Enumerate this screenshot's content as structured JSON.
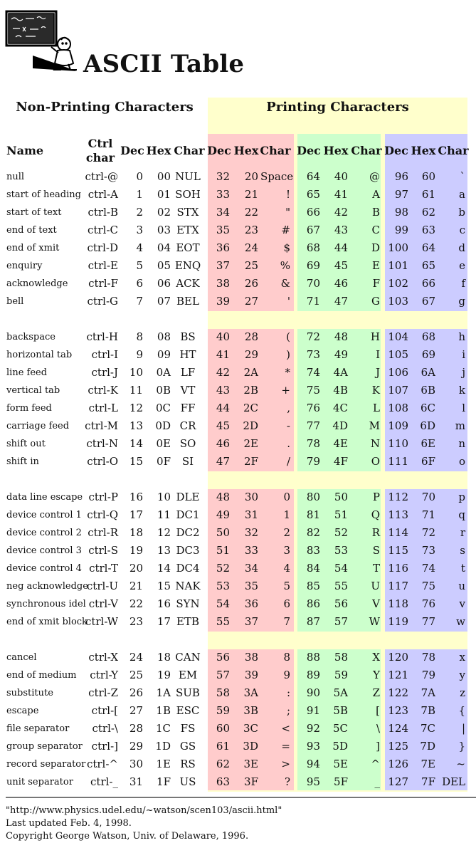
{
  "page": {
    "title": "ASCII Table",
    "logo_icon": "chalkboard-teacher-icon"
  },
  "sections": {
    "non_printing": "Non-Printing Characters",
    "printing": "Printing Characters"
  },
  "headers": {
    "name": "Name",
    "ctrl": "Ctrl char",
    "dec": "Dec",
    "hex": "Hex",
    "char": "Char"
  },
  "colors": {
    "section_bg": "#ffffcc",
    "group1_bg": "#ffcccc",
    "group2_bg": "#ccffcc",
    "group3_bg": "#ccccff"
  },
  "rows": [
    {
      "name": "null",
      "ctrl": "ctrl-@",
      "dec": "0",
      "hex": "00",
      "char": "NUL",
      "p": [
        [
          "32",
          "20",
          "Space"
        ],
        [
          "64",
          "40",
          "@"
        ],
        [
          "96",
          "60",
          "`"
        ]
      ]
    },
    {
      "name": "start of heading",
      "ctrl": "ctrl-A",
      "dec": "1",
      "hex": "01",
      "char": "SOH",
      "p": [
        [
          "33",
          "21",
          "!"
        ],
        [
          "65",
          "41",
          "A"
        ],
        [
          "97",
          "61",
          "a"
        ]
      ]
    },
    {
      "name": "start of text",
      "ctrl": "ctrl-B",
      "dec": "2",
      "hex": "02",
      "char": "STX",
      "p": [
        [
          "34",
          "22",
          "\""
        ],
        [
          "66",
          "42",
          "B"
        ],
        [
          "98",
          "62",
          "b"
        ]
      ]
    },
    {
      "name": "end of text",
      "ctrl": "ctrl-C",
      "dec": "3",
      "hex": "03",
      "char": "ETX",
      "p": [
        [
          "35",
          "23",
          "#"
        ],
        [
          "67",
          "43",
          "C"
        ],
        [
          "99",
          "63",
          "c"
        ]
      ]
    },
    {
      "name": "end of xmit",
      "ctrl": "ctrl-D",
      "dec": "4",
      "hex": "04",
      "char": "EOT",
      "p": [
        [
          "36",
          "24",
          "$"
        ],
        [
          "68",
          "44",
          "D"
        ],
        [
          "100",
          "64",
          "d"
        ]
      ]
    },
    {
      "name": "enquiry",
      "ctrl": "ctrl-E",
      "dec": "5",
      "hex": "05",
      "char": "ENQ",
      "p": [
        [
          "37",
          "25",
          "%"
        ],
        [
          "69",
          "45",
          "E"
        ],
        [
          "101",
          "65",
          "e"
        ]
      ]
    },
    {
      "name": "acknowledge",
      "ctrl": "ctrl-F",
      "dec": "6",
      "hex": "06",
      "char": "ACK",
      "p": [
        [
          "38",
          "26",
          "&"
        ],
        [
          "70",
          "46",
          "F"
        ],
        [
          "102",
          "66",
          "f"
        ]
      ]
    },
    {
      "name": "bell",
      "ctrl": "ctrl-G",
      "dec": "7",
      "hex": "07",
      "char": "BEL",
      "p": [
        [
          "39",
          "27",
          "'"
        ],
        [
          "71",
          "47",
          "G"
        ],
        [
          "103",
          "67",
          "g"
        ]
      ]
    },
    {
      "name": "backspace",
      "ctrl": "ctrl-H",
      "dec": "8",
      "hex": "08",
      "char": "BS",
      "p": [
        [
          "40",
          "28",
          "("
        ],
        [
          "72",
          "48",
          "H"
        ],
        [
          "104",
          "68",
          "h"
        ]
      ]
    },
    {
      "name": "horizontal tab",
      "ctrl": "ctrl-I",
      "dec": "9",
      "hex": "09",
      "char": "HT",
      "p": [
        [
          "41",
          "29",
          ")"
        ],
        [
          "73",
          "49",
          "I"
        ],
        [
          "105",
          "69",
          "i"
        ]
      ]
    },
    {
      "name": "line feed",
      "ctrl": "ctrl-J",
      "dec": "10",
      "hex": "0A",
      "char": "LF",
      "p": [
        [
          "42",
          "2A",
          "*"
        ],
        [
          "74",
          "4A",
          "J"
        ],
        [
          "106",
          "6A",
          "j"
        ]
      ]
    },
    {
      "name": "vertical tab",
      "ctrl": "ctrl-K",
      "dec": "11",
      "hex": "0B",
      "char": "VT",
      "p": [
        [
          "43",
          "2B",
          "+"
        ],
        [
          "75",
          "4B",
          "K"
        ],
        [
          "107",
          "6B",
          "k"
        ]
      ]
    },
    {
      "name": "form feed",
      "ctrl": "ctrl-L",
      "dec": "12",
      "hex": "0C",
      "char": "FF",
      "p": [
        [
          "44",
          "2C",
          ","
        ],
        [
          "76",
          "4C",
          "L"
        ],
        [
          "108",
          "6C",
          "l"
        ]
      ]
    },
    {
      "name": "carriage feed",
      "ctrl": "ctrl-M",
      "dec": "13",
      "hex": "0D",
      "char": "CR",
      "p": [
        [
          "45",
          "2D",
          "-"
        ],
        [
          "77",
          "4D",
          "M"
        ],
        [
          "109",
          "6D",
          "m"
        ]
      ]
    },
    {
      "name": "shift out",
      "ctrl": "ctrl-N",
      "dec": "14",
      "hex": "0E",
      "char": "SO",
      "p": [
        [
          "46",
          "2E",
          "."
        ],
        [
          "78",
          "4E",
          "N"
        ],
        [
          "110",
          "6E",
          "n"
        ]
      ]
    },
    {
      "name": "shift in",
      "ctrl": "ctrl-O",
      "dec": "15",
      "hex": "0F",
      "char": "SI",
      "p": [
        [
          "47",
          "2F",
          "/"
        ],
        [
          "79",
          "4F",
          "O"
        ],
        [
          "111",
          "6F",
          "o"
        ]
      ]
    },
    {
      "name": "data line escape",
      "ctrl": "ctrl-P",
      "dec": "16",
      "hex": "10",
      "char": "DLE",
      "p": [
        [
          "48",
          "30",
          "0"
        ],
        [
          "80",
          "50",
          "P"
        ],
        [
          "112",
          "70",
          "p"
        ]
      ]
    },
    {
      "name": "device control 1",
      "ctrl": "ctrl-Q",
      "dec": "17",
      "hex": "11",
      "char": "DC1",
      "p": [
        [
          "49",
          "31",
          "1"
        ],
        [
          "81",
          "51",
          "Q"
        ],
        [
          "113",
          "71",
          "q"
        ]
      ]
    },
    {
      "name": "device control 2",
      "ctrl": "ctrl-R",
      "dec": "18",
      "hex": "12",
      "char": "DC2",
      "p": [
        [
          "50",
          "32",
          "2"
        ],
        [
          "82",
          "52",
          "R"
        ],
        [
          "114",
          "72",
          "r"
        ]
      ]
    },
    {
      "name": "device control 3",
      "ctrl": "ctrl-S",
      "dec": "19",
      "hex": "13",
      "char": "DC3",
      "p": [
        [
          "51",
          "33",
          "3"
        ],
        [
          "83",
          "53",
          "S"
        ],
        [
          "115",
          "73",
          "s"
        ]
      ]
    },
    {
      "name": "device control 4",
      "ctrl": "ctrl-T",
      "dec": "20",
      "hex": "14",
      "char": "DC4",
      "p": [
        [
          "52",
          "34",
          "4"
        ],
        [
          "84",
          "54",
          "T"
        ],
        [
          "116",
          "74",
          "t"
        ]
      ]
    },
    {
      "name": "neg acknowledge",
      "ctrl": "ctrl-U",
      "dec": "21",
      "hex": "15",
      "char": "NAK",
      "p": [
        [
          "53",
          "35",
          "5"
        ],
        [
          "85",
          "55",
          "U"
        ],
        [
          "117",
          "75",
          "u"
        ]
      ]
    },
    {
      "name": "synchronous idel",
      "ctrl": "ctrl-V",
      "dec": "22",
      "hex": "16",
      "char": "SYN",
      "p": [
        [
          "54",
          "36",
          "6"
        ],
        [
          "86",
          "56",
          "V"
        ],
        [
          "118",
          "76",
          "v"
        ]
      ]
    },
    {
      "name": "end of xmit block",
      "ctrl": "ctrl-W",
      "dec": "23",
      "hex": "17",
      "char": "ETB",
      "p": [
        [
          "55",
          "37",
          "7"
        ],
        [
          "87",
          "57",
          "W"
        ],
        [
          "119",
          "77",
          "w"
        ]
      ]
    },
    {
      "name": "cancel",
      "ctrl": "ctrl-X",
      "dec": "24",
      "hex": "18",
      "char": "CAN",
      "p": [
        [
          "56",
          "38",
          "8"
        ],
        [
          "88",
          "58",
          "X"
        ],
        [
          "120",
          "78",
          "x"
        ]
      ]
    },
    {
      "name": "end of medium",
      "ctrl": "ctrl-Y",
      "dec": "25",
      "hex": "19",
      "char": "EM",
      "p": [
        [
          "57",
          "39",
          "9"
        ],
        [
          "89",
          "59",
          "Y"
        ],
        [
          "121",
          "79",
          "y"
        ]
      ]
    },
    {
      "name": "substitute",
      "ctrl": "ctrl-Z",
      "dec": "26",
      "hex": "1A",
      "char": "SUB",
      "p": [
        [
          "58",
          "3A",
          ":"
        ],
        [
          "90",
          "5A",
          "Z"
        ],
        [
          "122",
          "7A",
          "z"
        ]
      ]
    },
    {
      "name": "escape",
      "ctrl": "ctrl-[",
      "dec": "27",
      "hex": "1B",
      "char": "ESC",
      "p": [
        [
          "59",
          "3B",
          ";"
        ],
        [
          "91",
          "5B",
          "["
        ],
        [
          "123",
          "7B",
          "{"
        ]
      ]
    },
    {
      "name": "file separator",
      "ctrl": "ctrl-\\",
      "dec": "28",
      "hex": "1C",
      "char": "FS",
      "p": [
        [
          "60",
          "3C",
          "<"
        ],
        [
          "92",
          "5C",
          "\\"
        ],
        [
          "124",
          "7C",
          "|"
        ]
      ]
    },
    {
      "name": "group separator",
      "ctrl": "ctrl-]",
      "dec": "29",
      "hex": "1D",
      "char": "GS",
      "p": [
        [
          "61",
          "3D",
          "="
        ],
        [
          "93",
          "5D",
          "]"
        ],
        [
          "125",
          "7D",
          "}"
        ]
      ]
    },
    {
      "name": "record separator",
      "ctrl": "ctrl-^",
      "dec": "30",
      "hex": "1E",
      "char": "RS",
      "p": [
        [
          "62",
          "3E",
          ">"
        ],
        [
          "94",
          "5E",
          "^"
        ],
        [
          "126",
          "7E",
          "~"
        ]
      ]
    },
    {
      "name": "unit separator",
      "ctrl": "ctrl-_",
      "dec": "31",
      "hex": "1F",
      "char": "US",
      "p": [
        [
          "63",
          "3F",
          "?"
        ],
        [
          "95",
          "5F",
          "_"
        ],
        [
          "127",
          "7F",
          "DEL"
        ]
      ]
    }
  ],
  "footer": {
    "url": "\"http://www.physics.udel.edu/~watson/scen103/ascii.html\"",
    "updated": "Last updated Feb. 4, 1998.",
    "copyright": "Copyright George Watson, Univ. of Delaware, 1996."
  }
}
